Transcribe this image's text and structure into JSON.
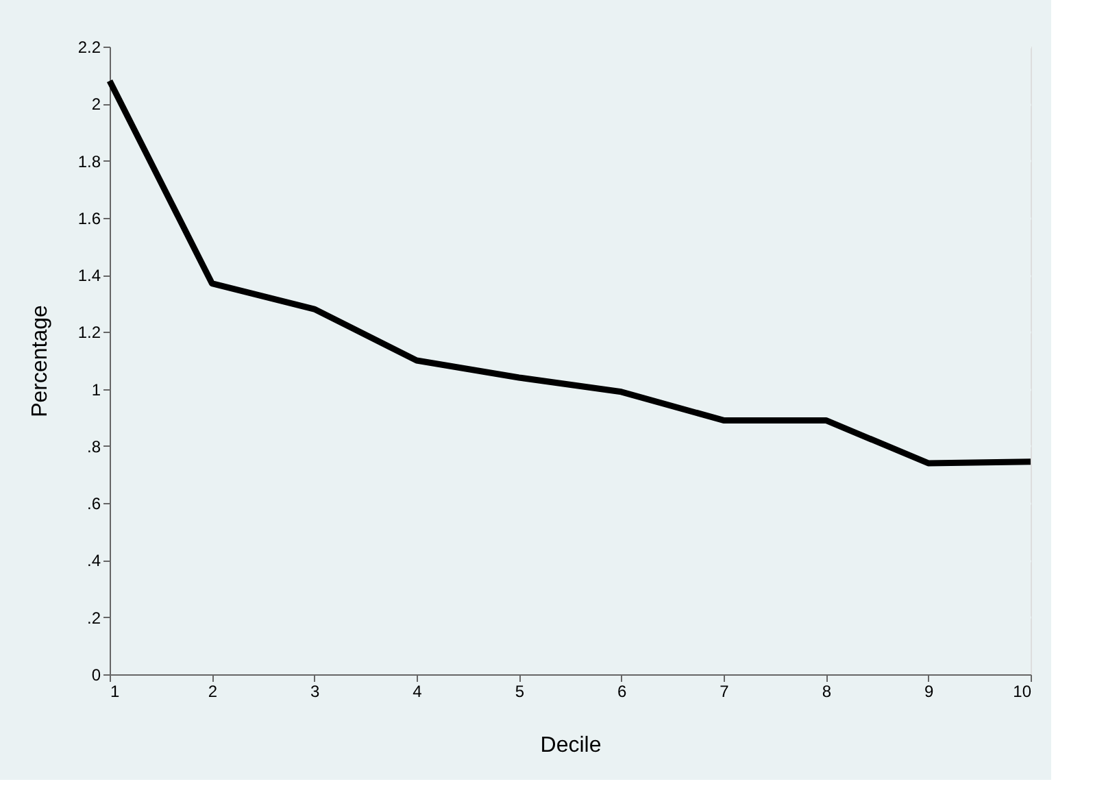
{
  "chart_data": {
    "type": "line",
    "xlabel": "Decile",
    "ylabel": "Percentage",
    "x": [
      1,
      2,
      3,
      4,
      5,
      6,
      7,
      8,
      9,
      10
    ],
    "series": [
      {
        "color": "#000000",
        "values": [
          2.08,
          1.37,
          1.28,
          1.1,
          1.04,
          0.99,
          0.89,
          0.89,
          0.74,
          0.745
        ]
      }
    ],
    "xlim": [
      1,
      10
    ],
    "xticks": [
      1,
      2,
      3,
      4,
      5,
      6,
      7,
      8,
      9,
      10
    ],
    "ylim": [
      0,
      2.2
    ],
    "yticks": [
      0,
      {
        "value": 0.2,
        "label": ".2"
      },
      {
        "value": 0.4,
        "label": ".4"
      },
      {
        "value": 0.6,
        "label": ".6"
      },
      {
        "value": 0.8,
        "label": ".8"
      },
      1,
      1.2,
      1.4,
      1.6,
      1.8,
      2,
      2.2
    ],
    "grid": "y",
    "legend": false,
    "marker": "none",
    "line_style": "solid"
  }
}
